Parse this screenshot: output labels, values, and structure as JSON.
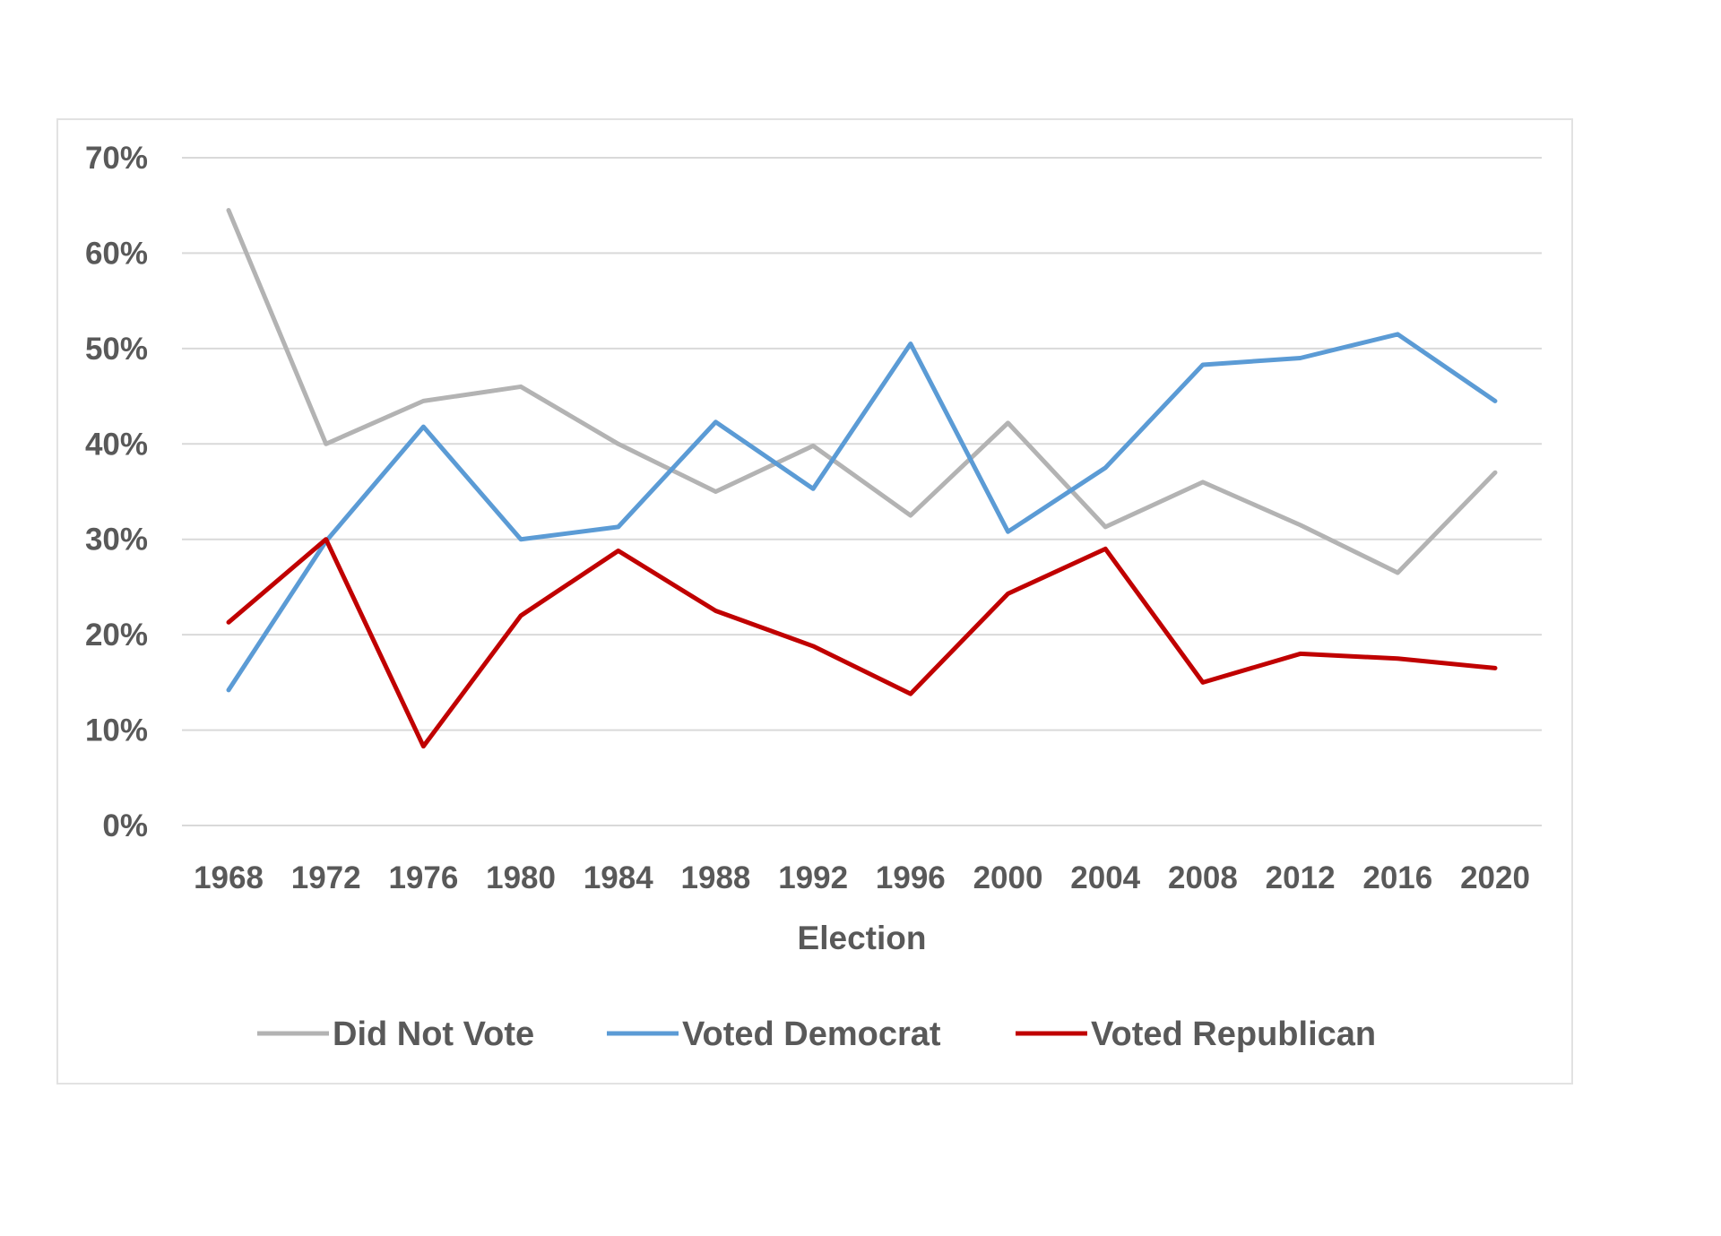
{
  "chart_data": {
    "type": "line",
    "categories": [
      "1968",
      "1972",
      "1976",
      "1980",
      "1984",
      "1988",
      "1992",
      "1996",
      "2000",
      "2004",
      "2008",
      "2012",
      "2016",
      "2020"
    ],
    "series": [
      {
        "name": "Did Not Vote",
        "color": "#b3b3b3",
        "values": [
          64.5,
          40.0,
          44.5,
          46.0,
          40.0,
          35.0,
          39.8,
          32.5,
          42.2,
          31.3,
          36.0,
          31.5,
          26.5,
          37.0
        ]
      },
      {
        "name": "Voted Democrat",
        "color": "#5b9bd5",
        "values": [
          14.2,
          29.8,
          41.8,
          30.0,
          31.3,
          42.3,
          35.3,
          50.5,
          30.8,
          37.5,
          48.3,
          49.0,
          51.5,
          44.5
        ]
      },
      {
        "name": "Voted Republican",
        "color": "#c00000",
        "values": [
          21.3,
          30.0,
          8.3,
          22.0,
          28.8,
          22.5,
          18.8,
          13.8,
          24.3,
          29.0,
          15.0,
          18.0,
          17.5,
          16.5
        ]
      }
    ],
    "title": "",
    "xlabel": "Election",
    "ylabel": "",
    "ylim": [
      0,
      70
    ],
    "yticks": [
      "0%",
      "10%",
      "20%",
      "30%",
      "40%",
      "50%",
      "60%",
      "70%"
    ],
    "grid": true,
    "legend_position": "bottom"
  }
}
